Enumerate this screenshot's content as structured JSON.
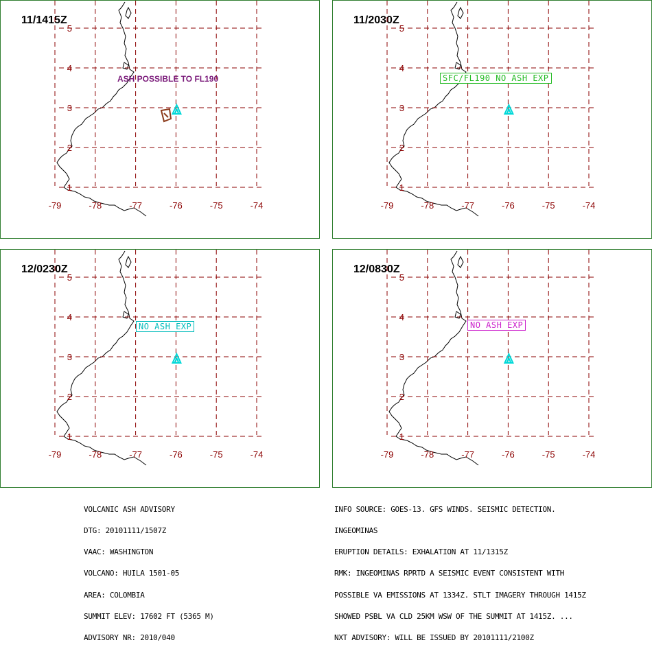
{
  "panels": [
    {
      "time": "11/1415Z",
      "annotation": {
        "text": "ASH POSSIBLE TO FL190",
        "style": "plain",
        "color": "#7a1a7a"
      },
      "has_ash_area": true
    },
    {
      "time": "11/2030Z",
      "annotation": {
        "text": "SFC/FL190 NO ASH EXP",
        "style": "boxed",
        "color": "#22bb22"
      },
      "has_ash_area": false
    },
    {
      "time": "12/0230Z",
      "annotation": {
        "text": "NO ASH EXP",
        "style": "boxed",
        "color": "#00bbbb"
      },
      "has_ash_area": false
    },
    {
      "time": "12/0830Z",
      "annotation": {
        "text": "NO ASH EXP",
        "style": "boxed",
        "color": "#cc22cc"
      },
      "has_ash_area": false
    }
  ],
  "axes": {
    "longitudes": [
      "-79",
      "-78",
      "-77",
      "-76",
      "-75",
      "-74"
    ],
    "latitudes": [
      "5",
      "4",
      "3",
      "2",
      "1"
    ]
  },
  "volcano_marker_color": "#00d8d8",
  "advisory_left": [
    "VOLCANIC ASH ADVISORY",
    "DTG: 20101111/1507Z",
    "VAAC: WASHINGTON",
    "VOLCANO: HUILA 1501-05",
    "AREA: COLOMBIA",
    "SUMMIT ELEV: 17602 FT (5365 M)",
    "ADVISORY NR: 2010/040"
  ],
  "advisory_right": [
    "INFO SOURCE: GOES-13. GFS WINDS. SEISMIC DETECTION.",
    "INGEOMINAS",
    "ERUPTION DETAILS: EXHALATION AT 11/1315Z",
    "RMK: INGEOMINAS RPRTD A SEISMIC EVENT CONSISTENT WITH",
    "POSSIBLE VA EMISSIONS AT 1334Z. STLT IMAGERY THROUGH 1415Z",
    "SHOWED PSBL VA CLD 25KM WSW OF THE SUMMIT AT 1415Z. ...",
    "NXT ADVISORY: WILL BE ISSUED BY 20101111/2100Z"
  ]
}
